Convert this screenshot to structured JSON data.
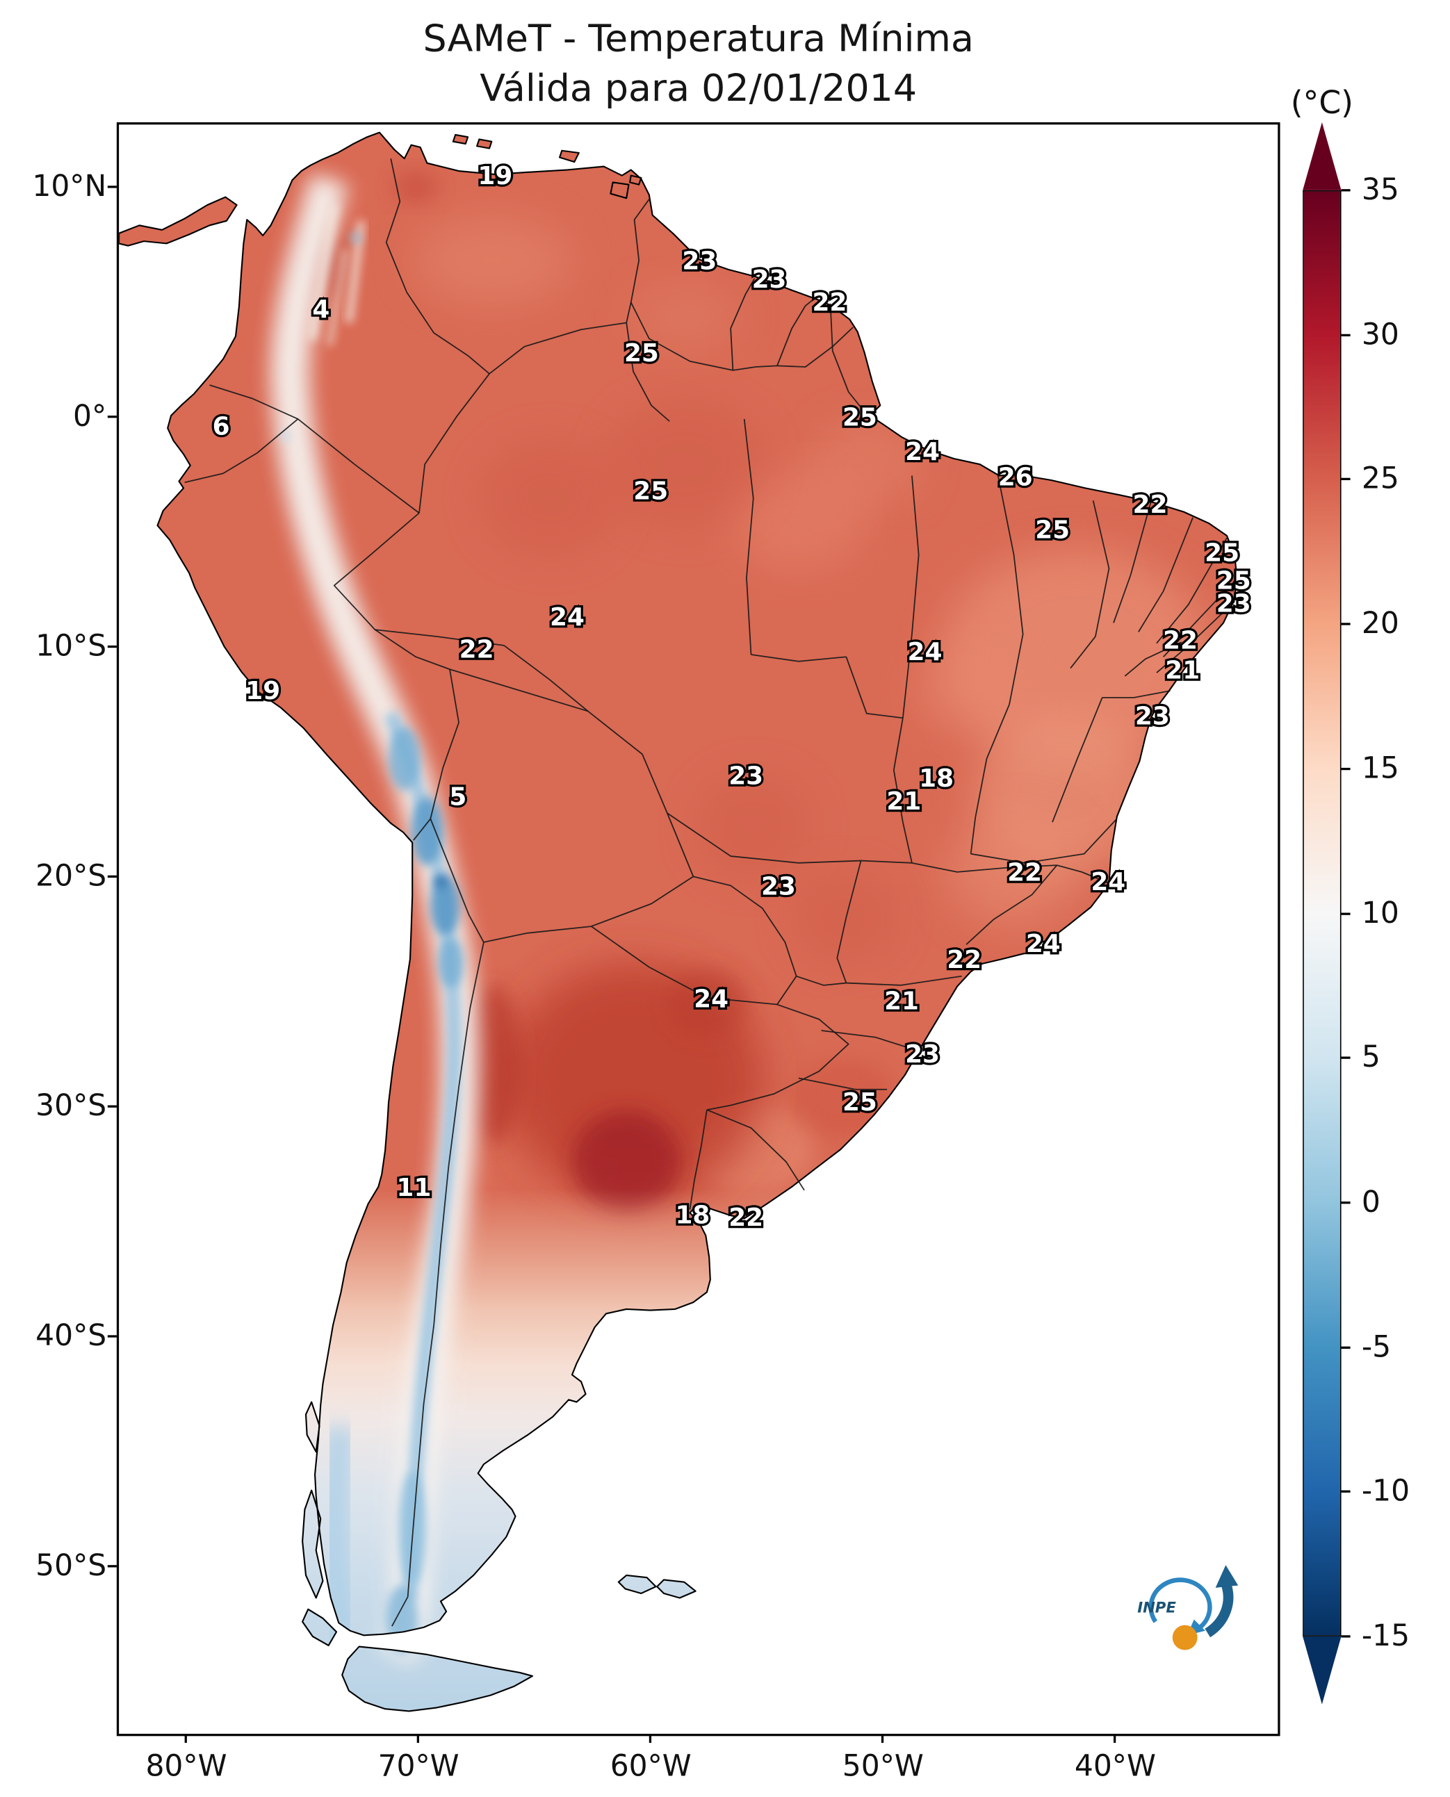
{
  "title": {
    "line1": "SAMeT - Temperatura Mínima",
    "line2": "Válida para 02/01/2014"
  },
  "colorbar": {
    "unit": "(°C)",
    "vmin": -15,
    "vmax": 35,
    "ticks": [
      35,
      30,
      25,
      20,
      15,
      10,
      5,
      0,
      -5,
      -10,
      -15
    ],
    "stops": [
      {
        "v": 35,
        "color": "#67001f"
      },
      {
        "v": 30,
        "color": "#b2182b"
      },
      {
        "v": 25,
        "color": "#d6604d"
      },
      {
        "v": 20,
        "color": "#f4a582"
      },
      {
        "v": 15,
        "color": "#fddbc7"
      },
      {
        "v": 10,
        "color": "#f7f7f7"
      },
      {
        "v": 5,
        "color": "#d1e5f0"
      },
      {
        "v": 0,
        "color": "#92c5de"
      },
      {
        "v": -5,
        "color": "#4393c3"
      },
      {
        "v": -10,
        "color": "#2166ac"
      },
      {
        "v": -15,
        "color": "#053061"
      }
    ]
  },
  "axes": {
    "lat_ticks": [
      {
        "label": "10°N",
        "value": 10
      },
      {
        "label": "0°",
        "value": 0
      },
      {
        "label": "10°S",
        "value": -10
      },
      {
        "label": "20°S",
        "value": -20
      },
      {
        "label": "30°S",
        "value": -30
      },
      {
        "label": "40°S",
        "value": -40
      },
      {
        "label": "50°S",
        "value": -50
      }
    ],
    "lon_ticks": [
      {
        "label": "80°W",
        "value": -80
      },
      {
        "label": "70°W",
        "value": -70
      },
      {
        "label": "60°W",
        "value": -60
      },
      {
        "label": "50°W",
        "value": -50
      },
      {
        "label": "40°W",
        "value": -40
      }
    ]
  },
  "logo": {
    "text": "INPE"
  },
  "chart_data": {
    "type": "heatmap",
    "title": "SAMeT - Temperatura Mínima",
    "subtitle": "Válida para 02/01/2014",
    "region": "South America",
    "unit": "°C",
    "colormap": "RdBu_r",
    "value_range": [
      -15,
      35
    ],
    "lon_range": [
      -82.9,
      -33.0
    ],
    "lat_range": [
      -57.3,
      12.7
    ],
    "point_labels": [
      {
        "value": 19,
        "lat": 10.5,
        "lon": -66.7
      },
      {
        "value": 23,
        "lat": 6.8,
        "lon": -57.9
      },
      {
        "value": 23,
        "lat": 6.0,
        "lon": -54.9
      },
      {
        "value": 22,
        "lat": 5.0,
        "lon": -52.3
      },
      {
        "value": 4,
        "lat": 4.7,
        "lon": -74.2
      },
      {
        "value": 25,
        "lat": 2.8,
        "lon": -60.4
      },
      {
        "value": 6,
        "lat": -0.4,
        "lon": -78.5
      },
      {
        "value": 25,
        "lat": 0.0,
        "lon": -51.0
      },
      {
        "value": 24,
        "lat": -1.5,
        "lon": -48.3
      },
      {
        "value": 26,
        "lat": -2.6,
        "lon": -44.3
      },
      {
        "value": 25,
        "lat": -3.2,
        "lon": -60.0
      },
      {
        "value": 25,
        "lat": -4.9,
        "lon": -42.7
      },
      {
        "value": 22,
        "lat": -3.8,
        "lon": -38.5
      },
      {
        "value": 25,
        "lat": -5.9,
        "lon": -35.4
      },
      {
        "value": 25,
        "lat": -7.1,
        "lon": -34.9
      },
      {
        "value": 23,
        "lat": -8.1,
        "lon": -34.9
      },
      {
        "value": 24,
        "lat": -8.7,
        "lon": -63.6
      },
      {
        "value": 22,
        "lat": -9.7,
        "lon": -37.2
      },
      {
        "value": 22,
        "lat": -10.1,
        "lon": -67.5
      },
      {
        "value": 24,
        "lat": -10.2,
        "lon": -48.2
      },
      {
        "value": 21,
        "lat": -11.0,
        "lon": -37.1
      },
      {
        "value": 19,
        "lat": -11.9,
        "lon": -76.7
      },
      {
        "value": 23,
        "lat": -13.0,
        "lon": -38.4
      },
      {
        "value": 5,
        "lat": -16.5,
        "lon": -68.3
      },
      {
        "value": 23,
        "lat": -15.6,
        "lon": -55.9
      },
      {
        "value": 18,
        "lat": -15.7,
        "lon": -47.7
      },
      {
        "value": 21,
        "lat": -16.7,
        "lon": -49.1
      },
      {
        "value": 22,
        "lat": -19.8,
        "lon": -43.9
      },
      {
        "value": 23,
        "lat": -20.4,
        "lon": -54.5
      },
      {
        "value": 24,
        "lat": -20.2,
        "lon": -40.3
      },
      {
        "value": 22,
        "lat": -23.6,
        "lon": -46.5
      },
      {
        "value": 24,
        "lat": -22.9,
        "lon": -43.1
      },
      {
        "value": 24,
        "lat": -25.3,
        "lon": -57.4
      },
      {
        "value": 21,
        "lat": -25.4,
        "lon": -49.2
      },
      {
        "value": 23,
        "lat": -27.7,
        "lon": -48.3
      },
      {
        "value": 25,
        "lat": -29.8,
        "lon": -51.0
      },
      {
        "value": 11,
        "lat": -33.5,
        "lon": -70.2
      },
      {
        "value": 18,
        "lat": -34.7,
        "lon": -58.2
      },
      {
        "value": 22,
        "lat": -34.8,
        "lon": -55.9
      }
    ]
  }
}
